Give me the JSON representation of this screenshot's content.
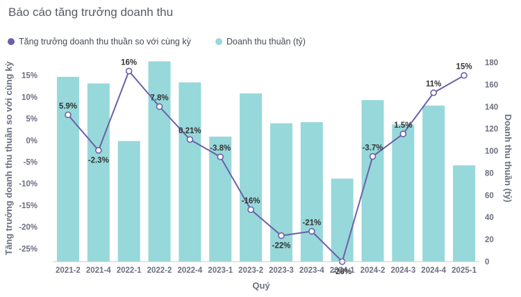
{
  "chart_data": {
    "type": "bar+line",
    "title": "Báo cáo tăng trưởng doanh thu",
    "xlabel": "Quý",
    "ylabel_left": "Tăng trưởng doanh thu thuần so với cùng kỳ",
    "ylabel_right": "Doanh thu thuần (tỷ)",
    "categories": [
      "2021-2",
      "2021-4",
      "2022-1",
      "2022-2",
      "2022-4",
      "2023-1",
      "2023-2",
      "2023-3",
      "2023-4",
      "2024-1",
      "2024-2",
      "2024-3",
      "2024-4",
      "2025-1"
    ],
    "left_axis": {
      "min": -28,
      "max": 18,
      "ticks": [
        15,
        10,
        5,
        0,
        -5,
        -10,
        -15,
        -20,
        -25
      ],
      "tick_labels": [
        "15%",
        "10%",
        "5%",
        "0%",
        "-5%",
        "-10%",
        "-15%",
        "-20%",
        "-25%"
      ]
    },
    "right_axis": {
      "min": 0,
      "max": 180,
      "ticks": [
        0,
        20,
        40,
        60,
        80,
        100,
        120,
        140,
        160,
        180
      ],
      "tick_labels": [
        "0",
        "20",
        "40",
        "60",
        "80",
        "100",
        "120",
        "140",
        "160",
        "180"
      ]
    },
    "series": [
      {
        "name": "Tăng trưởng doanh thu thuần so với cùng kỳ",
        "kind": "line",
        "axis": "left",
        "color": "#6b5fa8",
        "values": [
          5.9,
          -2.3,
          16,
          7.8,
          0.21,
          -3.8,
          -16,
          -22,
          -21,
          -28,
          -3.7,
          1.5,
          11,
          15
        ],
        "labels": [
          "5.9%",
          "-2.3%",
          "16%",
          "7.8%",
          "0.21%",
          "-3.8%",
          "-16%",
          "-22%",
          "-21%",
          "-28%",
          "-3.7%",
          "1.5%",
          "11%",
          "15%"
        ]
      },
      {
        "name": "Doanh thu thuần (tỷ)",
        "kind": "bar",
        "axis": "right",
        "color": "#97d8da",
        "values": [
          167,
          161,
          109,
          181,
          162,
          113,
          152,
          125,
          126,
          75,
          146,
          124,
          141,
          87
        ]
      }
    ],
    "legend_position": "top-left",
    "grid": false
  }
}
